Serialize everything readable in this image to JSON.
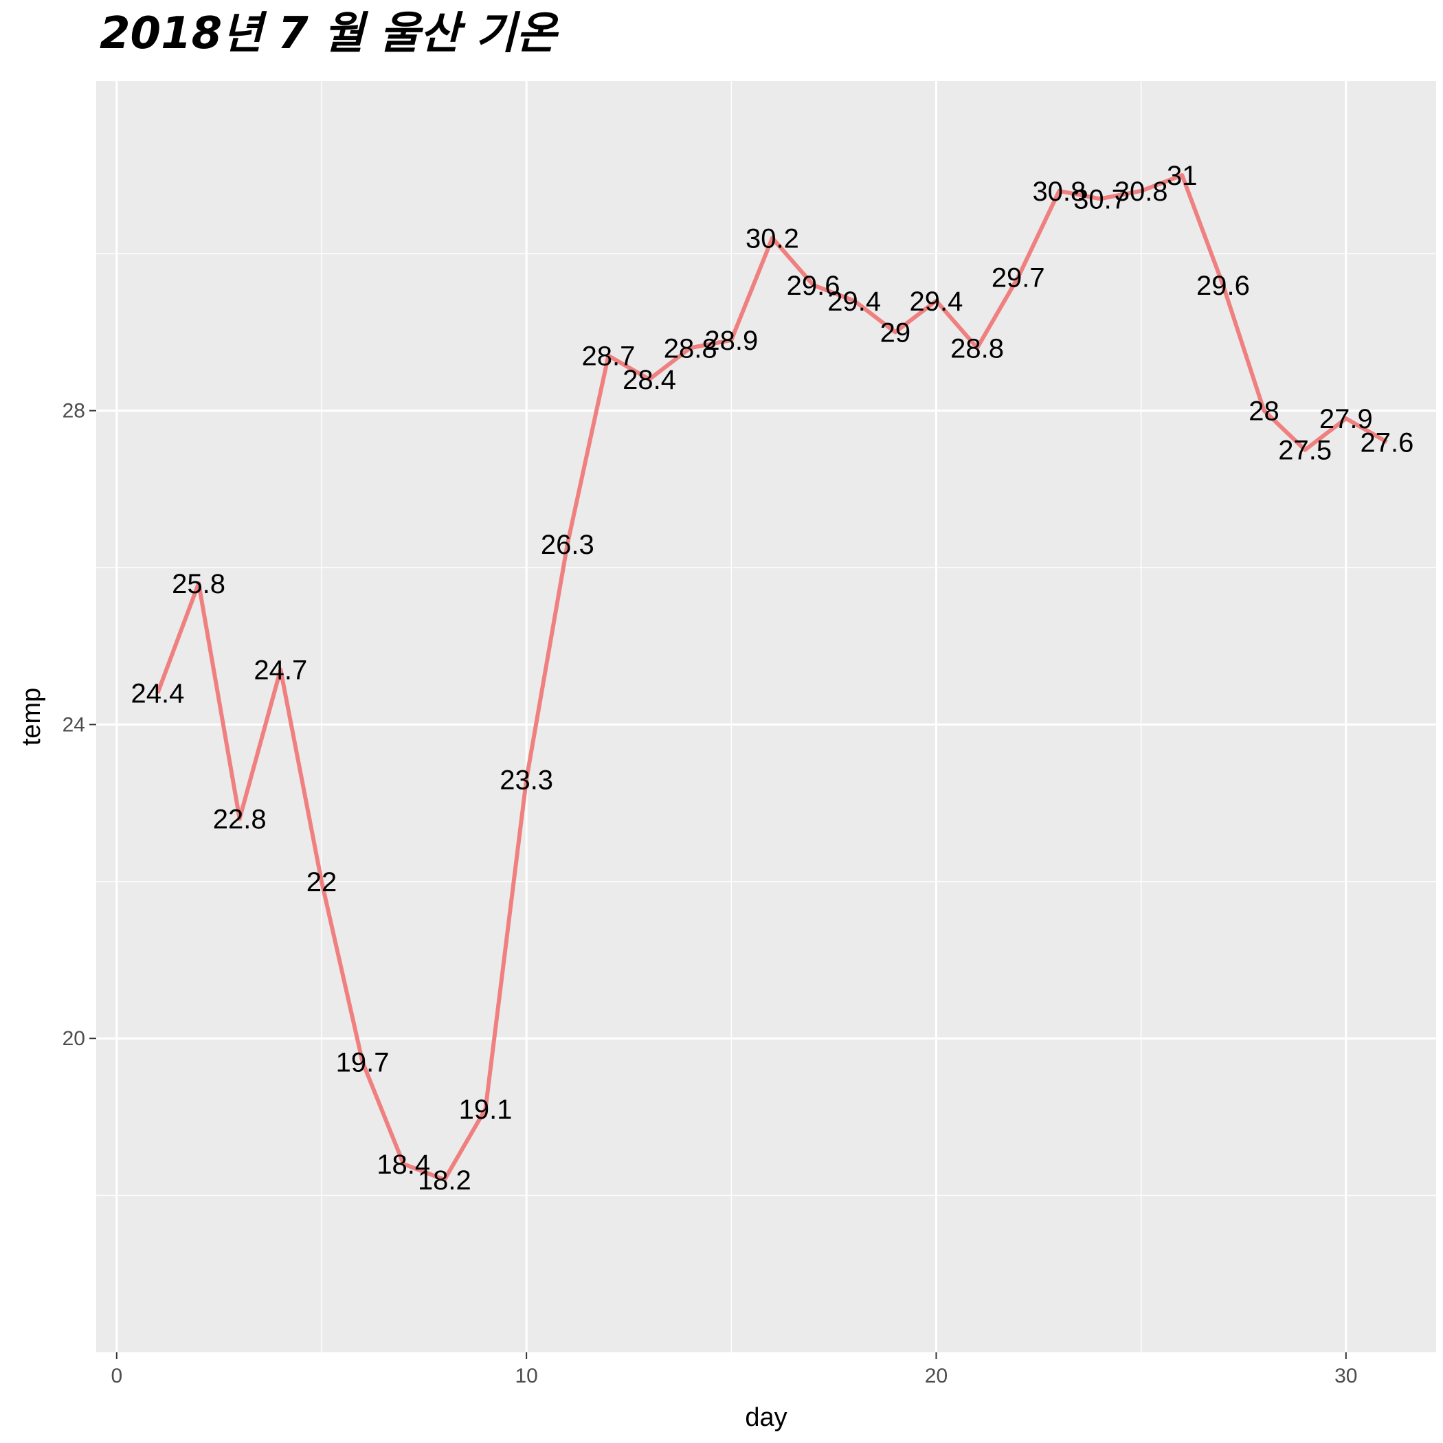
{
  "chart_data": {
    "type": "line",
    "title": "2018년 7 월 울산 기온",
    "xlabel": "day",
    "ylabel": "temp",
    "xlim": [
      -0.5,
      32.2
    ],
    "ylim": [
      16.0,
      32.2
    ],
    "x_ticks": [
      0,
      10,
      20,
      30
    ],
    "x_minor_ticks": [
      5,
      15,
      25
    ],
    "y_ticks": [
      20,
      24,
      28
    ],
    "y_minor_ticks": [
      18,
      22,
      26,
      30
    ],
    "grid": true,
    "line_color": "#f08080",
    "panel_color": "#ebebeb",
    "series": [
      {
        "x": [
          1,
          2,
          3,
          4,
          5,
          6,
          7,
          8,
          9,
          10,
          11,
          12,
          13,
          14,
          15,
          16,
          17,
          18,
          19,
          20,
          21,
          22,
          23,
          24,
          25,
          26,
          27,
          28,
          29,
          30,
          31
        ],
        "values": [
          24.4,
          25.8,
          22.8,
          24.7,
          22,
          19.7,
          18.4,
          18.2,
          19.1,
          23.3,
          26.3,
          28.7,
          28.4,
          28.8,
          28.9,
          30.2,
          29.6,
          29.4,
          29,
          29.4,
          28.8,
          29.7,
          30.8,
          30.7,
          30.8,
          31,
          29.6,
          28,
          27.5,
          27.9,
          27.6
        ],
        "labels": [
          "24.4",
          "25.8",
          "22.8",
          "24.7",
          "22",
          "19.7",
          "18.4",
          "18.2",
          "19.1",
          "23.3",
          "26.3",
          "28.7",
          "28.4",
          "28.8",
          "28.9",
          "30.2",
          "29.6",
          "29.4",
          "29",
          "29.4",
          "28.8",
          "29.7",
          "30.8",
          "30.7",
          "30.8",
          "31",
          "29.6",
          "28",
          "27.5",
          "27.9",
          "27.6"
        ]
      }
    ]
  }
}
